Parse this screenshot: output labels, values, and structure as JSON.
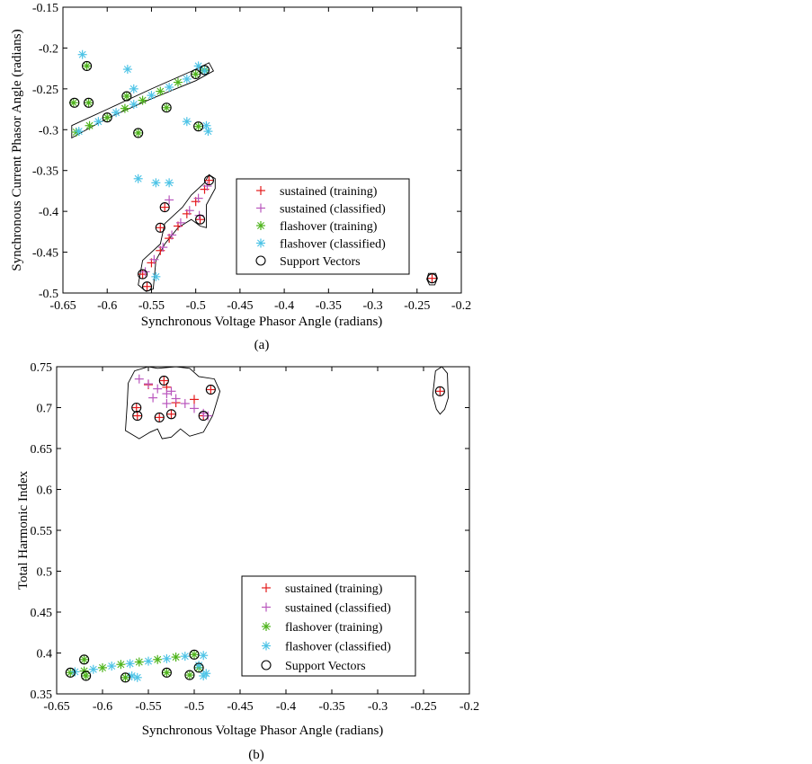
{
  "colors": {
    "sustained_training": "#e41a1c",
    "sustained_classified": "#b956bd",
    "flashover_training": "#4db31a",
    "flashover_classified": "#4cc3e6",
    "support_vectors": "#000000",
    "boundary": "#000000"
  },
  "legend_labels": [
    "sustained (training)",
    "sustained (classified)",
    "flashover (training)",
    "flashover (classified)",
    "Support Vectors"
  ],
  "chart_data": [
    {
      "type": "scatter",
      "caption": "(a)",
      "title": "",
      "xlabel": "Synchronous Voltage Phasor Angle (radians)",
      "ylabel": "Synchronous Current Phasor Angle (radians)",
      "xlim": [
        -0.65,
        -0.2
      ],
      "ylim": [
        -0.5,
        -0.15
      ],
      "xticks": [
        -0.65,
        -0.6,
        -0.55,
        -0.5,
        -0.45,
        -0.4,
        -0.35,
        -0.3,
        -0.25,
        -0.2
      ],
      "xtick_labels": [
        "-0.65",
        "-0.6",
        "-0.55",
        "-0.5",
        "-0.45",
        "-0.4",
        "-0.35",
        "-0.3",
        "-0.25",
        "-0.2"
      ],
      "yticks": [
        -0.5,
        -0.45,
        -0.4,
        -0.35,
        -0.3,
        -0.25,
        -0.2,
        -0.15
      ],
      "ytick_labels": [
        "-0.5",
        "-0.45",
        "-0.4",
        "-0.35",
        "-0.3",
        "-0.25",
        "-0.2",
        "-0.15"
      ],
      "legend_position": "lower-right",
      "series": [
        {
          "name": "sustained (training)",
          "marker": "plus",
          "x": [
            -0.56,
            -0.55,
            -0.54,
            -0.53,
            -0.52,
            -0.51,
            -0.5,
            -0.49,
            -0.485,
            -0.555,
            -0.54,
            -0.535,
            -0.495,
            -0.233
          ],
          "y": [
            -0.477,
            -0.463,
            -0.448,
            -0.433,
            -0.418,
            -0.403,
            -0.388,
            -0.373,
            -0.362,
            -0.492,
            -0.42,
            -0.395,
            -0.41,
            -0.482
          ]
        },
        {
          "name": "sustained (classified)",
          "marker": "plus",
          "x": [
            -0.557,
            -0.547,
            -0.537,
            -0.527,
            -0.517,
            -0.507,
            -0.497,
            -0.487,
            -0.53,
            -0.496
          ],
          "y": [
            -0.474,
            -0.459,
            -0.444,
            -0.429,
            -0.414,
            -0.399,
            -0.384,
            -0.369,
            -0.386,
            -0.405
          ]
        },
        {
          "name": "flashover (training)",
          "marker": "star",
          "x": [
            -0.635,
            -0.62,
            -0.6,
            -0.58,
            -0.56,
            -0.54,
            -0.52,
            -0.5,
            -0.49,
            -0.638,
            -0.623,
            -0.621,
            -0.578,
            -0.565,
            -0.533,
            -0.497
          ],
          "y": [
            -0.303,
            -0.295,
            -0.285,
            -0.274,
            -0.264,
            -0.253,
            -0.242,
            -0.232,
            -0.227,
            -0.267,
            -0.222,
            -0.267,
            -0.259,
            -0.304,
            -0.273,
            -0.296
          ]
        },
        {
          "name": "flashover (classified)",
          "marker": "star",
          "x": [
            -0.632,
            -0.61,
            -0.59,
            -0.57,
            -0.55,
            -0.53,
            -0.51,
            -0.49,
            -0.628,
            -0.577,
            -0.57,
            -0.565,
            -0.545,
            -0.53,
            -0.545,
            -0.51,
            -0.488,
            -0.486,
            -0.497
          ],
          "y": [
            -0.302,
            -0.29,
            -0.279,
            -0.269,
            -0.258,
            -0.248,
            -0.238,
            -0.228,
            -0.208,
            -0.226,
            -0.25,
            -0.36,
            -0.365,
            -0.365,
            -0.48,
            -0.29,
            -0.295,
            -0.302,
            -0.222
          ]
        },
        {
          "name": "Support Vectors",
          "marker": "circle",
          "x": [
            -0.637,
            -0.623,
            -0.621,
            -0.578,
            -0.565,
            -0.533,
            -0.497,
            -0.49,
            -0.555,
            -0.54,
            -0.535,
            -0.495,
            -0.485,
            -0.56,
            -0.233,
            -0.6,
            -0.5
          ],
          "y": [
            -0.267,
            -0.222,
            -0.267,
            -0.259,
            -0.304,
            -0.273,
            -0.296,
            -0.227,
            -0.492,
            -0.42,
            -0.395,
            -0.41,
            -0.362,
            -0.477,
            -0.482,
            -0.285,
            -0.232
          ]
        }
      ]
    },
    {
      "type": "scatter",
      "caption": "(b)",
      "title": "",
      "xlabel": "Synchronous Voltage Phasor Angle (radians)",
      "ylabel": "Total Harmonic Index",
      "xlim": [
        -0.65,
        -0.2
      ],
      "ylim": [
        0.35,
        0.75
      ],
      "xticks": [
        -0.65,
        -0.6,
        -0.55,
        -0.5,
        -0.45,
        -0.4,
        -0.35,
        -0.3,
        -0.25,
        -0.2
      ],
      "xtick_labels": [
        "-0.65",
        "-0.6",
        "-0.55",
        "-0.5",
        "-0.45",
        "-0.4",
        "-0.35",
        "-0.3",
        "-0.25",
        "-0.2"
      ],
      "yticks": [
        0.35,
        0.4,
        0.45,
        0.5,
        0.55,
        0.6,
        0.65,
        0.7,
        0.75
      ],
      "ytick_labels": [
        "0.35",
        "0.4",
        "0.45",
        "0.5",
        "0.55",
        "0.6",
        "0.65",
        "0.7",
        "0.75"
      ],
      "legend_position": "lower-right",
      "series": [
        {
          "name": "sustained (training)",
          "marker": "plus",
          "x": [
            -0.563,
            -0.562,
            -0.55,
            -0.538,
            -0.533,
            -0.53,
            -0.525,
            -0.5,
            -0.49,
            -0.482,
            -0.232,
            -0.52
          ],
          "y": [
            0.7,
            0.69,
            0.728,
            0.688,
            0.733,
            0.725,
            0.692,
            0.71,
            0.69,
            0.722,
            0.72,
            0.706
          ]
        },
        {
          "name": "sustained (classified)",
          "marker": "plus",
          "x": [
            -0.56,
            -0.55,
            -0.54,
            -0.53,
            -0.52,
            -0.51,
            -0.5,
            -0.49,
            -0.485,
            -0.545,
            -0.53,
            -0.525
          ],
          "y": [
            0.735,
            0.729,
            0.723,
            0.717,
            0.711,
            0.705,
            0.699,
            0.693,
            0.69,
            0.712,
            0.705,
            0.72
          ]
        },
        {
          "name": "flashover (training)",
          "marker": "star",
          "x": [
            -0.635,
            -0.62,
            -0.6,
            -0.58,
            -0.56,
            -0.54,
            -0.52,
            -0.5,
            -0.62,
            -0.618,
            -0.575,
            -0.53,
            -0.505,
            -0.495
          ],
          "y": [
            0.376,
            0.378,
            0.382,
            0.386,
            0.389,
            0.392,
            0.395,
            0.398,
            0.392,
            0.372,
            0.37,
            0.376,
            0.373,
            0.382
          ]
        },
        {
          "name": "flashover (classified)",
          "marker": "star",
          "x": [
            -0.63,
            -0.61,
            -0.59,
            -0.57,
            -0.55,
            -0.53,
            -0.51,
            -0.49,
            -0.487,
            -0.49,
            -0.568,
            -0.562,
            -0.495
          ],
          "y": [
            0.377,
            0.38,
            0.384,
            0.387,
            0.39,
            0.393,
            0.396,
            0.397,
            0.375,
            0.372,
            0.372,
            0.37,
            0.385
          ]
        },
        {
          "name": "Support Vectors",
          "marker": "circle",
          "x": [
            -0.563,
            -0.562,
            -0.538,
            -0.533,
            -0.525,
            -0.49,
            -0.482,
            -0.232,
            -0.635,
            -0.62,
            -0.618,
            -0.575,
            -0.53,
            -0.505,
            -0.495,
            -0.5
          ],
          "y": [
            0.7,
            0.69,
            0.688,
            0.733,
            0.692,
            0.69,
            0.722,
            0.72,
            0.376,
            0.392,
            0.372,
            0.37,
            0.376,
            0.373,
            0.382,
            0.398
          ]
        }
      ]
    }
  ]
}
